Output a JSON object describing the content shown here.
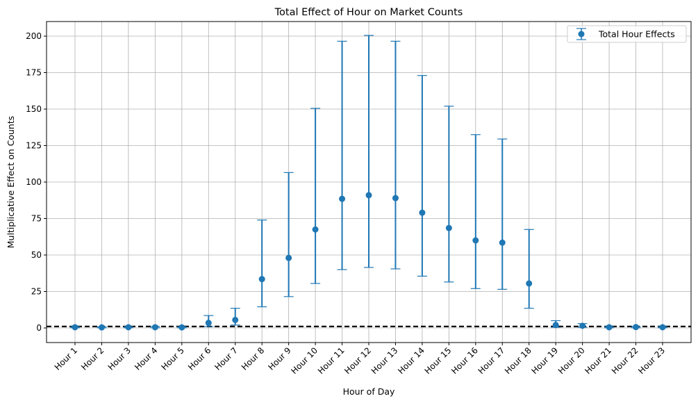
{
  "chart_data": {
    "type": "scatter",
    "title": "Total Effect of Hour on Market Counts",
    "xlabel": "Hour of Day",
    "ylabel": "Multiplicative Effect on Counts",
    "ylim": [
      -10,
      210
    ],
    "yticks": [
      0,
      25,
      50,
      75,
      100,
      125,
      150,
      175,
      200
    ],
    "grid": true,
    "legend_position": "top-right",
    "reference_line": {
      "y": 1,
      "style": "dashed",
      "color": "#000000"
    },
    "categories": [
      "Hour 1",
      "Hour 2",
      "Hour 3",
      "Hour 4",
      "Hour 5",
      "Hour 6",
      "Hour 7",
      "Hour 8",
      "Hour 9",
      "Hour 10",
      "Hour 11",
      "Hour 12",
      "Hour 13",
      "Hour 14",
      "Hour 15",
      "Hour 16",
      "Hour 17",
      "Hour 18",
      "Hour 19",
      "Hour 20",
      "Hour 21",
      "Hour 22",
      "Hour 23"
    ],
    "series": [
      {
        "name": "Total Hour Effects",
        "color": "#1f77b4",
        "values": [
          0.5,
          0.4,
          0.5,
          0.5,
          0.4,
          3.5,
          5.5,
          33.5,
          48,
          67.5,
          88.5,
          91,
          89,
          79,
          68.5,
          60,
          58.5,
          30.5,
          2.0,
          1.5,
          0.5,
          0.6,
          0.5
        ],
        "lower": [
          0.1,
          0.1,
          0.1,
          0.1,
          0.1,
          1.0,
          2.0,
          14.5,
          21.5,
          30.5,
          40,
          41.5,
          40.5,
          35.5,
          31.5,
          27,
          26.5,
          13.5,
          0.5,
          0.5,
          0.1,
          0.1,
          0.1
        ],
        "upper": [
          1.0,
          0.8,
          1.0,
          1.0,
          0.8,
          8.5,
          13.5,
          74,
          106.5,
          150.5,
          196.5,
          200.5,
          196.5,
          173,
          152,
          132.5,
          129.5,
          67.5,
          5.0,
          3.0,
          1.0,
          1.0,
          1.0
        ]
      }
    ]
  }
}
